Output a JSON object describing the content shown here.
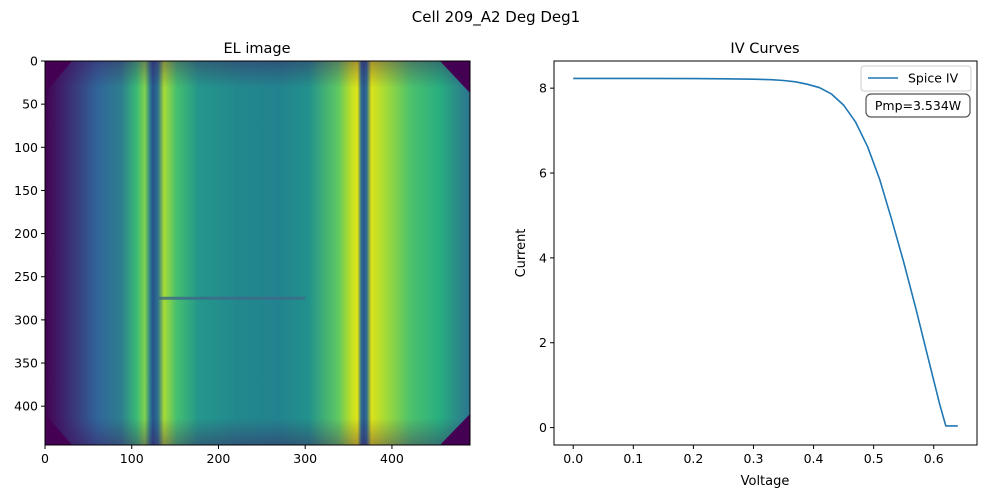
{
  "figure": {
    "suptitle": "Cell 209_A2 Deg Deg1"
  },
  "chart_data": [
    {
      "type": "heatmap",
      "title": "EL image",
      "xlabel": "",
      "ylabel": "",
      "xlim": [
        0,
        490
      ],
      "ylim": [
        445,
        0
      ],
      "x_ticks": [
        "0",
        "100",
        "200",
        "300",
        "400"
      ],
      "y_ticks": [
        "0",
        "50",
        "100",
        "150",
        "200",
        "250",
        "300",
        "350",
        "400"
      ],
      "colormap": "viridis",
      "features": {
        "busbars_x": [
          124,
          362
        ],
        "crack": {
          "x0": 130,
          "x1": 300,
          "y": 275
        }
      }
    },
    {
      "type": "line",
      "title": "IV Curves",
      "xlabel": "Voltage",
      "ylabel": "Current",
      "xlim": [
        -0.032,
        0.672
      ],
      "ylim": [
        -0.41,
        8.64
      ],
      "x_ticks": [
        "0.0",
        "0.1",
        "0.2",
        "0.3",
        "0.4",
        "0.5",
        "0.6"
      ],
      "y_ticks": [
        "0",
        "2",
        "4",
        "6",
        "8"
      ],
      "grid": false,
      "legend_position": "upper-right",
      "series": [
        {
          "name": "Spice IV",
          "color": "#1f77b4",
          "x": [
            0.0,
            0.1,
            0.2,
            0.25,
            0.3,
            0.33,
            0.35,
            0.37,
            0.39,
            0.41,
            0.43,
            0.45,
            0.47,
            0.49,
            0.51,
            0.53,
            0.55,
            0.57,
            0.59,
            0.61,
            0.62,
            0.64
          ],
          "y": [
            8.23,
            8.23,
            8.225,
            8.22,
            8.21,
            8.2,
            8.18,
            8.15,
            8.09,
            8.01,
            7.86,
            7.6,
            7.2,
            6.62,
            5.85,
            4.9,
            3.9,
            2.82,
            1.68,
            0.55,
            0.04,
            0.04
          ]
        }
      ],
      "annotation": "Pmp=3.534W"
    }
  ]
}
